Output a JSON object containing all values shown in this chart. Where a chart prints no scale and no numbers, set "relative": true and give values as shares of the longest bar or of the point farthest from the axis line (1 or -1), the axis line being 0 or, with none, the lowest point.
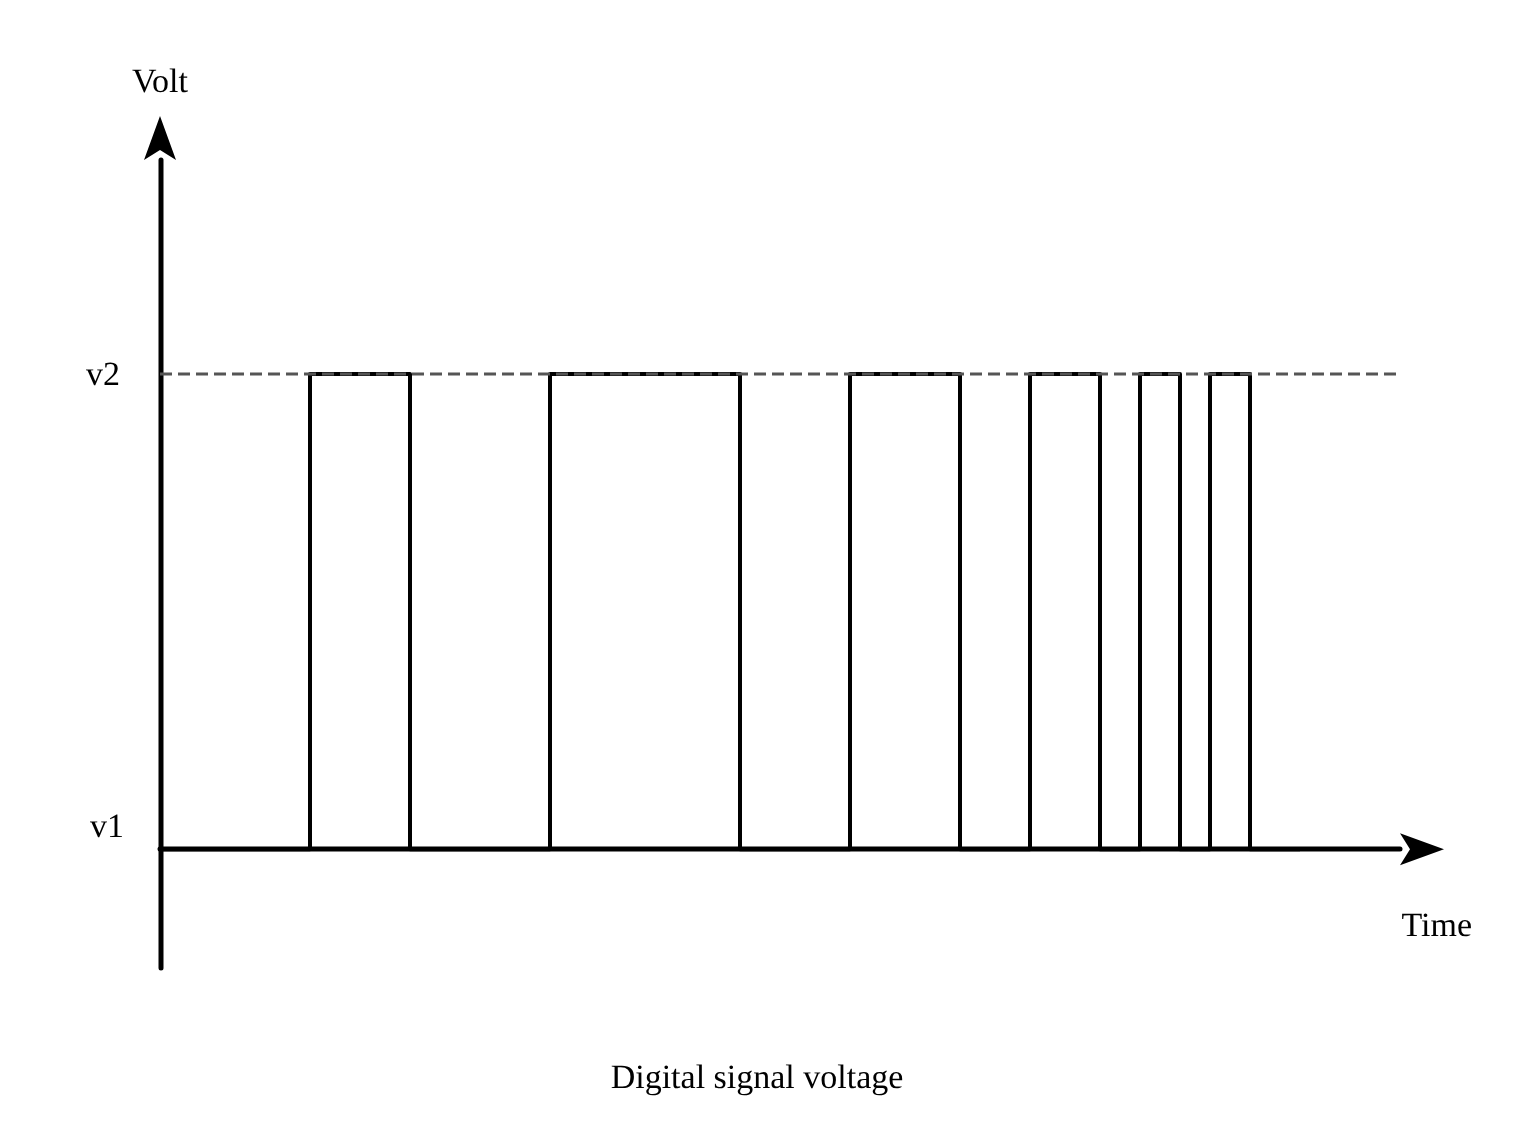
{
  "chart_data": {
    "type": "step",
    "title": "Digital signal voltage",
    "xlabel": "Time",
    "categories": [
      null,
      null,
      null,
      null,
      null,
      null,
      null,
      null,
      null,
      null,
      null,
      null,
      null,
      null,
      null,
      null,
      null,
      null,
      null,
      null,
      null,
      null,
      null,
      null,
      null,
      null,
      null,
      null,
      null,
      null,
      null,
      null,
      null,
      null,
      null,
      null,
      null,
      null,
      null,
      null,
      null,
      null,
      null,
      null,
      null,
      null,
      null,
      null,
      null,
      null,
      null,
      null,
      null,
      null,
      null,
      null,
      null,
      null,
      null,
      null,
      null,
      null,
      null,
      null,
      null,
      null,
      null,
      null,
      null,
      null,
      null,
      null,
      null,
      null,
      null,
      null,
      null,
      null,
      null,
      null,
      null,
      null,
      null,
      null,
      null,
      null,
      null,
      null,
      null,
      null,
      null,
      null,
      null,
      null,
      null,
      null,
      null,
      null,
      null,
      null,
      null,
      null,
      null,
      null,
      null,
      null,
      null,
      null,
      null,
      null,
      null,
      null,
      null,
      null,
      null,
      null,
      null,
      null,
      null,
      null,
      null,
      null,
      null,
      null,
      null
    ],
    "series": [
      {
        "color": "#000000",
        "values": [
          0,
          0,
          0,
          0,
          0,
          0,
          0,
          0,
          0,
          0,
          0,
          0,
          0,
          0,
          0,
          1,
          1,
          1,
          1,
          1,
          1,
          1,
          1,
          1,
          1,
          0,
          0,
          0,
          0,
          0,
          0,
          0,
          0,
          0,
          0,
          0,
          0,
          0,
          0,
          1,
          1,
          1,
          1,
          1,
          1,
          1,
          1,
          1,
          1,
          1,
          1,
          1,
          1,
          1,
          1,
          1,
          1,
          1,
          0,
          0,
          0,
          0,
          0,
          0,
          0,
          0,
          0,
          0,
          0,
          1,
          1,
          1,
          1,
          1,
          1,
          1,
          1,
          1,
          1,
          1,
          0,
          0,
          0,
          0,
          0,
          0,
          0,
          1,
          1,
          1,
          1,
          1,
          1,
          1,
          0,
          0,
          0,
          0,
          1,
          1,
          1,
          1,
          0,
          0,
          0,
          1,
          1,
          1,
          1,
          0,
          0,
          0,
          0,
          0,
          null,
          null,
          null,
          null,
          null,
          null,
          null,
          null,
          null,
          null,
          null
        ]
      }
    ],
    "relative": true,
    "annotations": [
      "v1",
      "Volt"
    ],
    "ref_lines": [
      {
        "axis": "y",
        "value": 1,
        "label": "v2",
        "color": "#555555",
        "line_style": "dashed"
      }
    ],
    "grid": false,
    "marker": "none",
    "line_style": "solid"
  }
}
